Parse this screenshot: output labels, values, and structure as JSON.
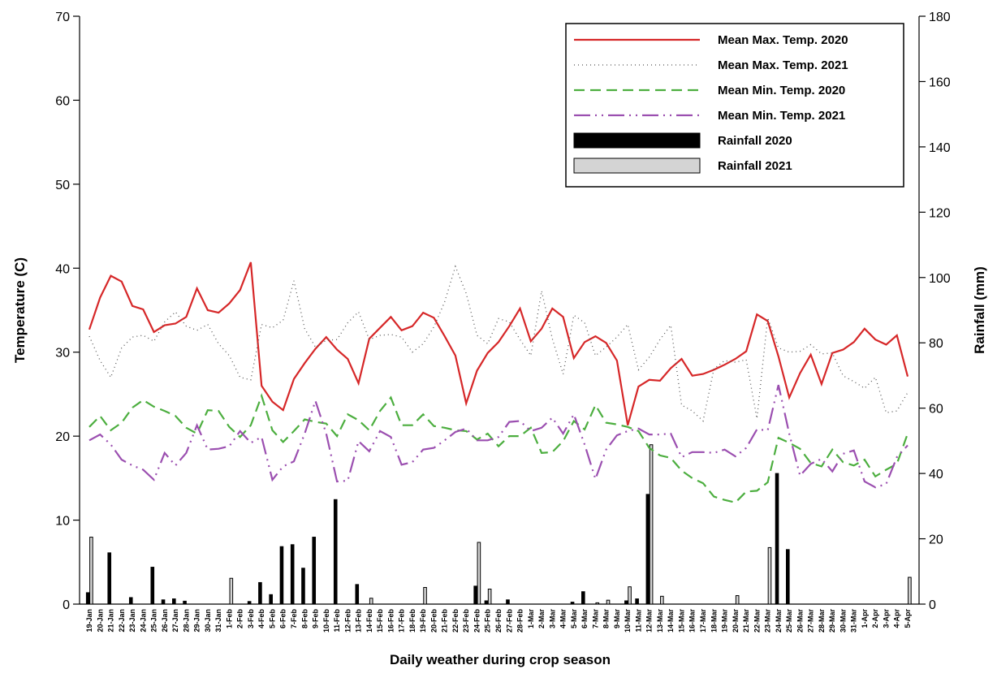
{
  "chart_data": {
    "type": "line-bar",
    "xlabel": "Daily weather during crop season",
    "ylabel": "Temperature (C)",
    "y2label": "Rainfall (mm)",
    "categories": [
      "19-Jan",
      "20-Jan",
      "21-Jan",
      "22-Jan",
      "23-Jan",
      "24-Jan",
      "25-Jan",
      "26-Jan",
      "27-Jan",
      "28-Jan",
      "29-Jan",
      "30-Jan",
      "31-Jan",
      "1-Feb",
      "2-Feb",
      "3-Feb",
      "4-Feb",
      "5-Feb",
      "6-Feb",
      "7-Feb",
      "8-Feb",
      "9-Feb",
      "10-Feb",
      "11-Feb",
      "12-Feb",
      "13-Feb",
      "14-Feb",
      "15-Feb",
      "16-Feb",
      "17-Feb",
      "18-Feb",
      "19-Feb",
      "20-Feb",
      "21-Feb",
      "22-Feb",
      "23-Feb",
      "24-Feb",
      "25-Feb",
      "26-Feb",
      "27-Feb",
      "28-Feb",
      "1-Mar",
      "2-Mar",
      "3-Mar",
      "4-Mar",
      "5-Mar",
      "6-Mar",
      "7-Mar",
      "8-Mar",
      "9-Mar",
      "10-Mar",
      "11-Mar",
      "12-Mar",
      "13-Mar",
      "14-Mar",
      "15-Mar",
      "16-Mar",
      "17-Mar",
      "18-Mar",
      "19-Mar",
      "20-Mar",
      "21-Mar",
      "22-Mar",
      "23-Mar",
      "24-Mar",
      "25-Mar",
      "26-Mar",
      "27-Mar",
      "28-Mar",
      "29-Mar",
      "30-Mar",
      "31-Mar",
      "1-Apr",
      "2-Apr",
      "3-Apr",
      "4-Apr",
      "5-Apr"
    ],
    "series": [
      {
        "name": "Mean Max. Temp. 2020",
        "kind": "line",
        "style": "solid",
        "color": "#d62728",
        "values": [
          32.7,
          36.5,
          39.1,
          38.4,
          35.5,
          35.1,
          32.4,
          33.2,
          33.4,
          34.2,
          37.6,
          35.0,
          34.7,
          35.8,
          37.4,
          40.7,
          26.0,
          24.1,
          23.1,
          26.8,
          28.7,
          30.4,
          31.8,
          30.3,
          29.2,
          26.3,
          31.6,
          32.9,
          34.2,
          32.6,
          33.1,
          34.7,
          34.1,
          31.9,
          29.6,
          23.9,
          27.8,
          29.9,
          31.2,
          33.1,
          35.2,
          31.3,
          32.8,
          35.2,
          34.2,
          29.3,
          31.2,
          31.9,
          31.1,
          29.0,
          21.3,
          25.9,
          26.7,
          26.6,
          28.1,
          29.2,
          27.2,
          27.4,
          27.9,
          28.5,
          29.2,
          30.1,
          34.5,
          33.7,
          29.5,
          24.6,
          27.5,
          29.7,
          26.2,
          29.9,
          30.3,
          31.2,
          32.8,
          31.5,
          30.9,
          32.0,
          27.1
        ]
      },
      {
        "name": "Mean Max. Temp. 2021",
        "kind": "line",
        "style": "dotted",
        "color": "#555555",
        "values": [
          31.9,
          29.0,
          27.0,
          30.5,
          31.8,
          32.0,
          31.3,
          33.6,
          34.8,
          33.1,
          32.6,
          33.3,
          31.0,
          29.6,
          27.0,
          26.7,
          33.3,
          32.9,
          33.8,
          38.5,
          32.8,
          30.6,
          31.4,
          31.5,
          33.5,
          34.8,
          31.5,
          32.0,
          32.1,
          31.8,
          30.0,
          31.0,
          33.0,
          36.0,
          40.2,
          37.0,
          32.0,
          31.0,
          34.0,
          33.6,
          31.5,
          29.6,
          37.3,
          31.6,
          27.4,
          34.4,
          33.5,
          29.6,
          30.6,
          31.8,
          33.3,
          27.9,
          29.4,
          31.5,
          33.2,
          23.7,
          23.0,
          21.8,
          28.0,
          29.0,
          28.8,
          29.1,
          22.1,
          34.1,
          30.5,
          30.0,
          30.1,
          30.9,
          29.8,
          29.9,
          27.2,
          26.5,
          25.7,
          27.0,
          22.8,
          23.0,
          25.2
        ]
      },
      {
        "name": "Mean Min. Temp. 2020",
        "kind": "line",
        "style": "dashed",
        "color": "#4cae3f",
        "values": [
          21.1,
          22.4,
          20.7,
          21.6,
          23.4,
          24.3,
          23.5,
          23.0,
          22.4,
          21.0,
          20.3,
          23.1,
          23.0,
          21.1,
          19.9,
          21.3,
          24.8,
          20.7,
          19.3,
          20.6,
          22.0,
          21.7,
          21.5,
          20.0,
          22.6,
          21.9,
          20.7,
          23.0,
          24.6,
          21.3,
          21.3,
          22.6,
          21.2,
          21.0,
          20.7,
          20.6,
          19.6,
          20.3,
          18.8,
          20.0,
          20.0,
          21.0,
          18.0,
          18.1,
          19.4,
          21.8,
          20.8,
          23.7,
          21.6,
          21.4,
          21.1,
          20.6,
          18.6,
          17.7,
          17.4,
          15.9,
          15.0,
          14.4,
          12.8,
          12.4,
          12.1,
          13.4,
          13.5,
          14.5,
          19.8,
          19.2,
          18.5,
          16.8,
          16.4,
          18.4,
          16.9,
          16.5,
          17.2,
          15.2,
          16.0,
          16.7,
          20.3
        ]
      },
      {
        "name": "Mean Min. Temp. 2021",
        "kind": "line",
        "style": "dash-dot-dot",
        "color": "#9b4fb0",
        "values": [
          19.5,
          20.2,
          19.0,
          17.2,
          16.5,
          16.0,
          14.8,
          18.0,
          16.5,
          18.0,
          21.3,
          18.4,
          18.5,
          18.8,
          20.6,
          19.2,
          19.9,
          14.8,
          16.4,
          17.0,
          20.3,
          24.2,
          20.3,
          14.6,
          14.7,
          19.4,
          18.2,
          20.6,
          19.9,
          16.6,
          16.9,
          18.4,
          18.6,
          19.5,
          20.5,
          20.9,
          19.5,
          19.5,
          19.9,
          21.7,
          21.8,
          20.6,
          21.0,
          22.2,
          20.3,
          22.6,
          19.0,
          14.9,
          18.4,
          20.1,
          20.6,
          20.9,
          20.2,
          20.2,
          20.3,
          17.5,
          18.1,
          18.1,
          18.0,
          18.4,
          17.6,
          18.6,
          20.8,
          20.7,
          26.1,
          20.3,
          15.3,
          16.7,
          17.3,
          15.8,
          17.9,
          18.3,
          14.6,
          13.9,
          14.3,
          17.5,
          18.9
        ]
      },
      {
        "name": "Rainfall 2020",
        "kind": "bar",
        "axis": "y2",
        "color": "#000000",
        "values": [
          3.5,
          0,
          15.7,
          0,
          2,
          0,
          11.3,
          1.3,
          1.6,
          0.9,
          0,
          0,
          0,
          0,
          0,
          0.8,
          6.6,
          2.9,
          17.6,
          18.2,
          11,
          20.5,
          0,
          32,
          0,
          6,
          0,
          0,
          0,
          0,
          0,
          0,
          0,
          0,
          0,
          0,
          5.5,
          1,
          0,
          1.3,
          0,
          0,
          0,
          0,
          0,
          0.6,
          3.8,
          0,
          0,
          0,
          1,
          1.6,
          33.6,
          0,
          0,
          0,
          0,
          0,
          0,
          0,
          0,
          0,
          0,
          0,
          40,
          16.7,
          0,
          0,
          0,
          0,
          0,
          0,
          0,
          0,
          0,
          0,
          0
        ]
      },
      {
        "name": "Rainfall 2021",
        "kind": "bar",
        "axis": "y2",
        "color": "#d4d4d4",
        "values": [
          20.5,
          0,
          0,
          0,
          0,
          0,
          0,
          0,
          0,
          0,
          0,
          0,
          0,
          7.9,
          0,
          0,
          0,
          0,
          0,
          0,
          0,
          0,
          0,
          0,
          0,
          0,
          1.8,
          0,
          0,
          0,
          0,
          5.1,
          0,
          0,
          0,
          0,
          18.9,
          4.6,
          0,
          0,
          0,
          0,
          0,
          0,
          0,
          0,
          0,
          0.4,
          1.2,
          0,
          5.3,
          0,
          48.8,
          2.4,
          0,
          0,
          0,
          0,
          0,
          0,
          2.6,
          0,
          0,
          17.3,
          0,
          0,
          0,
          0,
          0,
          0,
          0,
          0,
          0,
          0,
          0,
          0,
          8.2
        ]
      }
    ],
    "ylim": [
      0,
      70
    ],
    "yticks": [
      0,
      10,
      20,
      30,
      40,
      50,
      60,
      70
    ],
    "y2lim": [
      0,
      180
    ],
    "y2ticks": [
      0,
      20,
      40,
      60,
      80,
      100,
      120,
      140,
      160,
      180
    ],
    "grid": false,
    "legend": "upper right"
  }
}
